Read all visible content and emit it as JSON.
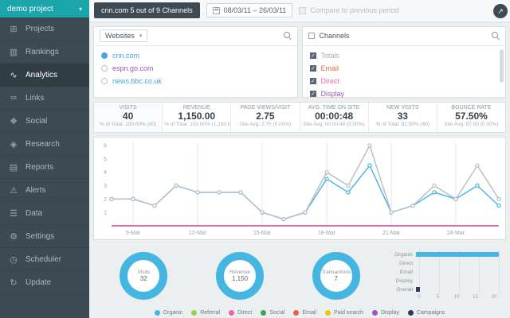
{
  "sidebar": {
    "project": {
      "label": "demo project"
    },
    "items": [
      {
        "label": "Projects",
        "icon": "grid-icon",
        "glyph": "⊞",
        "active": false
      },
      {
        "label": "Rankings",
        "icon": "bar-chart-icon",
        "glyph": "▥",
        "active": false
      },
      {
        "label": "Analytics",
        "icon": "line-chart-icon",
        "glyph": "∿",
        "active": true
      },
      {
        "label": "Links",
        "icon": "link-icon",
        "glyph": "∞",
        "active": false
      },
      {
        "label": "Social",
        "icon": "share-icon",
        "glyph": "❖",
        "active": false
      },
      {
        "label": "Research",
        "icon": "research-icon",
        "glyph": "◈",
        "active": false
      },
      {
        "label": "Reports",
        "icon": "report-icon",
        "glyph": "▤",
        "active": false
      },
      {
        "label": "Alerts",
        "icon": "alert-icon",
        "glyph": "⚠",
        "active": false
      },
      {
        "label": "Data",
        "icon": "database-icon",
        "glyph": "☰",
        "active": false
      },
      {
        "label": "Settings",
        "icon": "gear-icon",
        "glyph": "⚙",
        "active": false
      },
      {
        "label": "Scheduler",
        "icon": "clock-icon",
        "glyph": "◷",
        "active": false
      },
      {
        "label": "Update",
        "icon": "refresh-icon",
        "glyph": "↻",
        "active": false
      }
    ]
  },
  "topbar": {
    "channels_button": "cnn.com 5 out of 9 Channels",
    "date_range": "08/03/11 – 26/03/11",
    "compare_label": "Compare to previous period",
    "share_glyph": "↗"
  },
  "websites_panel": {
    "title": "Websites",
    "items": [
      {
        "label": "cnn.com",
        "color": "#4aa3df",
        "selected": true
      },
      {
        "label": "espn.go.com",
        "color": "#9b59b6",
        "selected": false
      },
      {
        "label": "news.bbc.co.uk",
        "color": "#4aa3df",
        "selected": false
      }
    ]
  },
  "channels_panel": {
    "title": "Channels",
    "items": [
      {
        "label": "Totals",
        "color": "#a8b0b5",
        "checked": true
      },
      {
        "label": "Email",
        "color": "#e8604c",
        "checked": true
      },
      {
        "label": "Direct",
        "color": "#f063a4",
        "checked": true
      },
      {
        "label": "Display",
        "color": "#9b59b6",
        "checked": true
      }
    ]
  },
  "metrics": [
    {
      "label": "VISITS",
      "value": "40",
      "sub": "% of Total: 100.00% (40)"
    },
    {
      "label": "REVENUE",
      "value": "1,150.00",
      "sub": "% of Total: 100.00% (1,150.00)"
    },
    {
      "label": "PAGE VIEWS/VISIT",
      "value": "2.75",
      "sub": "Site Avg: 2.75 (0.00%)"
    },
    {
      "label": "AVG. TIME ON SITE",
      "value": "00:00:48",
      "sub": "Site Avg: 00:00:48 (0.00%)"
    },
    {
      "label": "NEW VISITS",
      "value": "33",
      "sub": "% of Total: 82.50% (40)"
    },
    {
      "label": "BOUNCE RATE",
      "value": "57.50%",
      "sub": "Site Avg: 57.50 (0.00%)"
    }
  ],
  "chart_data": [
    {
      "type": "line",
      "x": [
        "8-Mar",
        "9-Mar",
        "10-Mar",
        "11-Mar",
        "12-Mar",
        "13-Mar",
        "14-Mar",
        "15-Mar",
        "16-Mar",
        "17-Mar",
        "18-Mar",
        "19-Mar",
        "20-Mar",
        "21-Mar",
        "22-Mar",
        "23-Mar",
        "24-Mar",
        "25-Mar",
        "26-Mar"
      ],
      "x_ticks": [
        "9-Mar",
        "12-Mar",
        "15-Mar",
        "18-Mar",
        "21-Mar",
        "24-Mar"
      ],
      "ylim": [
        0,
        6
      ],
      "y_ticks": [
        1,
        2,
        3,
        4,
        5,
        6
      ],
      "series": [
        {
          "name": "Email",
          "color": "#e8604c",
          "markers": false,
          "values": [
            0,
            0,
            0,
            0,
            0,
            0,
            0,
            0,
            0,
            0,
            0,
            0,
            0,
            0,
            0,
            0,
            0,
            0,
            0
          ]
        },
        {
          "name": "Display",
          "color": "#9b59b6",
          "markers": false,
          "values": [
            0,
            0,
            0,
            0,
            0,
            0,
            0,
            0,
            0,
            0,
            0,
            0,
            0,
            0,
            0,
            0,
            0,
            0,
            0
          ]
        },
        {
          "name": "Direct",
          "color": "#f063a4",
          "markers": false,
          "values": [
            0,
            0,
            0,
            0,
            0,
            0,
            0,
            0,
            0,
            0,
            0,
            0,
            0,
            0,
            0,
            0,
            0,
            0,
            0
          ]
        },
        {
          "name": "Organic",
          "color": "#45b6e2",
          "markers": true,
          "values": [
            2,
            2,
            1.5,
            3,
            2.5,
            2.5,
            2.5,
            1,
            0.5,
            1,
            3.5,
            2.5,
            4.5,
            1,
            1.5,
            2.5,
            2,
            3,
            1.5
          ]
        },
        {
          "name": "Totals",
          "color": "#b6bcc1",
          "markers": true,
          "values": [
            2,
            2,
            1.5,
            3,
            2.5,
            2.5,
            2.5,
            1,
            0.5,
            1,
            4,
            3,
            6,
            1,
            1.5,
            3,
            2,
            4.5,
            2
          ]
        }
      ]
    },
    {
      "type": "donut",
      "label": "Visits",
      "value": "32",
      "color": "#45b6e2"
    },
    {
      "type": "donut",
      "label": "Revenue",
      "value": "1,150",
      "color": "#45b6e2"
    },
    {
      "type": "donut",
      "label": "Transactions",
      "value": "7",
      "color": "#45b6e2"
    },
    {
      "type": "bar",
      "orientation": "horizontal",
      "categories": [
        "Organic",
        "Direct",
        "Email",
        "Display",
        "Overall"
      ],
      "values": [
        20,
        0,
        0,
        0,
        1
      ],
      "colors": [
        "#45b6e2",
        "#f063a4",
        "#e8604c",
        "#9b59b6",
        "#2c3e50"
      ],
      "xlim": [
        0,
        20
      ],
      "x_ticks": [
        0,
        5,
        10,
        15,
        20
      ]
    }
  ],
  "legend": [
    {
      "label": "Organic",
      "color": "#45b6e2"
    },
    {
      "label": "Referral",
      "color": "#9acd5a"
    },
    {
      "label": "Direct",
      "color": "#f063a4"
    },
    {
      "label": "Social",
      "color": "#3fa45b"
    },
    {
      "label": "Email",
      "color": "#e8604c"
    },
    {
      "label": "Paid search",
      "color": "#f1c40f"
    },
    {
      "label": "Display",
      "color": "#9b59b6"
    },
    {
      "label": "Campaigns",
      "color": "#2c3e50"
    }
  ]
}
